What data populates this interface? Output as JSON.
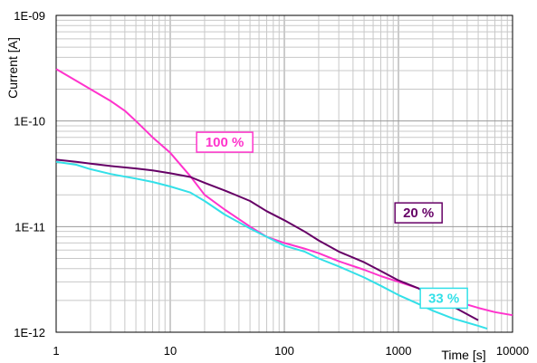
{
  "chart_data": {
    "type": "line",
    "xlabel": "Time [s]",
    "ylabel": "Current [A]",
    "x_scale": "log",
    "y_scale": "log",
    "xlim": [
      1,
      10000
    ],
    "ylim": [
      1e-12,
      1e-09
    ],
    "x_ticks": [
      "1",
      "10",
      "100",
      "1000",
      "10000"
    ],
    "y_ticks": [
      "1E-09",
      "1E-10",
      "1E-11",
      "1E-12"
    ],
    "grid": true,
    "series": [
      {
        "name": "100 %",
        "color": "#ff33cc",
        "x": [
          1,
          1.5,
          2,
          3,
          4,
          5,
          7,
          10,
          15,
          20,
          30,
          50,
          70,
          100,
          150,
          200,
          300,
          500,
          700,
          1000,
          1500,
          2000,
          3000,
          5000,
          7000,
          10000
        ],
        "y": [
          3.1e-10,
          2.4e-10,
          2e-10,
          1.55e-10,
          1.25e-10,
          1e-10,
          7e-11,
          5e-11,
          3e-11,
          2e-11,
          1.45e-11,
          1e-11,
          8e-12,
          7e-12,
          6.2e-12,
          5.6e-12,
          4.7e-12,
          3.9e-12,
          3.4e-12,
          3e-12,
          2.6e-12,
          2.3e-12,
          2e-12,
          1.7e-12,
          1.55e-12,
          1.45e-12
        ]
      },
      {
        "name": "20 %",
        "color": "#660066",
        "x": [
          1,
          1.5,
          2,
          3,
          5,
          7,
          10,
          15,
          20,
          30,
          50,
          70,
          100,
          150,
          200,
          300,
          500,
          700,
          1000,
          1500,
          2000,
          3000,
          5000
        ],
        "y": [
          4.3e-11,
          4.1e-11,
          3.95e-11,
          3.75e-11,
          3.55e-11,
          3.4e-11,
          3.2e-11,
          2.95e-11,
          2.6e-11,
          2.2e-11,
          1.75e-11,
          1.4e-11,
          1.15e-11,
          9e-12,
          7.4e-12,
          5.8e-12,
          4.6e-12,
          3.8e-12,
          3.1e-12,
          2.6e-12,
          2.2e-12,
          1.75e-12,
          1.3e-12
        ]
      },
      {
        "name": "33 %",
        "color": "#33e0e8",
        "x": [
          1,
          1.5,
          2,
          3,
          5,
          7,
          10,
          15,
          20,
          30,
          50,
          70,
          100,
          150,
          200,
          300,
          500,
          700,
          1000,
          1500,
          2000,
          3000,
          5000,
          6000
        ],
        "y": [
          4.1e-11,
          3.85e-11,
          3.5e-11,
          3.15e-11,
          2.85e-11,
          2.65e-11,
          2.4e-11,
          2.1e-11,
          1.75e-11,
          1.3e-11,
          9.6e-12,
          8e-12,
          6.6e-12,
          5.8e-12,
          5e-12,
          4.2e-12,
          3.3e-12,
          2.75e-12,
          2.25e-12,
          1.85e-12,
          1.6e-12,
          1.35e-12,
          1.15e-12,
          1.08e-12
        ]
      }
    ],
    "series_labels": [
      {
        "text": "100 %",
        "color": "#ff33cc",
        "x": 30,
        "y": 6.3e-11
      },
      {
        "text": "20 %",
        "color": "#660066",
        "x": 1500,
        "y": 1.35e-11
      },
      {
        "text": "33 %",
        "color": "#33e0e8",
        "x": 2500,
        "y": 2.1e-12
      }
    ]
  }
}
